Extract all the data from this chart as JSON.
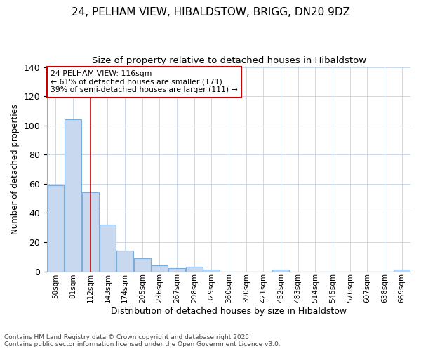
{
  "title_line1": "24, PELHAM VIEW, HIBALDSTOW, BRIGG, DN20 9DZ",
  "title_line2": "Size of property relative to detached houses in Hibaldstow",
  "xlabel": "Distribution of detached houses by size in Hibaldstow",
  "ylabel": "Number of detached properties",
  "categories": [
    "50sqm",
    "81sqm",
    "112sqm",
    "143sqm",
    "174sqm",
    "205sqm",
    "236sqm",
    "267sqm",
    "298sqm",
    "329sqm",
    "360sqm",
    "390sqm",
    "421sqm",
    "452sqm",
    "483sqm",
    "514sqm",
    "545sqm",
    "576sqm",
    "607sqm",
    "638sqm",
    "669sqm"
  ],
  "values": [
    59,
    104,
    54,
    32,
    14,
    9,
    4,
    2,
    3,
    1,
    0,
    0,
    0,
    1,
    0,
    0,
    0,
    0,
    0,
    0,
    1
  ],
  "bar_color": "#c8d8ee",
  "bar_edge_color": "#7aacdc",
  "bar_width": 0.97,
  "vline_x_index": 2,
  "vline_color": "#cc0000",
  "annotation_line1": "24 PELHAM VIEW: 116sqm",
  "annotation_line2": "← 61% of detached houses are smaller (171)",
  "annotation_line3": "39% of semi-detached houses are larger (111) →",
  "annotation_box_facecolor": "#ffffff",
  "annotation_box_edgecolor": "#cc0000",
  "ylim": [
    0,
    140
  ],
  "yticks": [
    0,
    20,
    40,
    60,
    80,
    100,
    120,
    140
  ],
  "grid_color": "#c8d8ee",
  "bg_color": "#ffffff",
  "footnote_line1": "Contains HM Land Registry data © Crown copyright and database right 2025.",
  "footnote_line2": "Contains public sector information licensed under the Open Government Licence v3.0."
}
